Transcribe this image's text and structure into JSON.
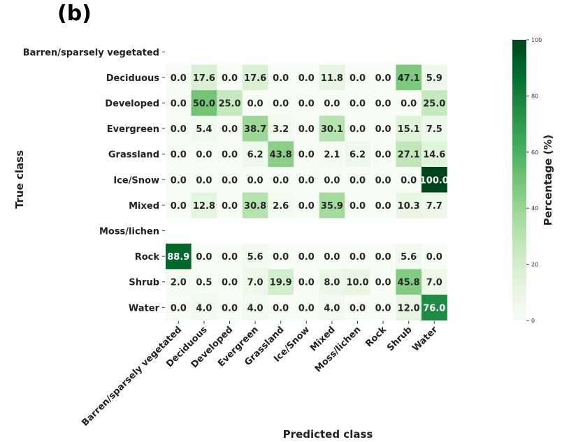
{
  "panel_label": "(b)",
  "chart_data": {
    "type": "heatmap",
    "xlabel": "Predicted class",
    "ylabel": "True class",
    "colorbar_label": "Percentage (%)",
    "colorbar_ticks": [
      "0",
      "20",
      "40",
      "60",
      "80",
      "100"
    ],
    "vmin": 0,
    "vmax": 100,
    "colormap": [
      "#f7fcf5",
      "#e5f5e0",
      "#c7e9c0",
      "#a1d99b",
      "#74c476",
      "#41ab5d",
      "#238b45",
      "#006d2c",
      "#00441b"
    ],
    "row_labels": [
      "Barren/sparsely vegetated",
      "Deciduous",
      "Developed",
      "Evergreen",
      "Grassland",
      "Ice/Snow",
      "Mixed",
      "Moss/lichen",
      "Rock",
      "Shrub",
      "Water"
    ],
    "col_labels": [
      "Barren/sparsely vegetated",
      "Deciduous",
      "Developed",
      "Evergreen",
      "Grassland",
      "Ice/Snow",
      "Mixed",
      "Moss/lichen",
      "Rock",
      "Shrub",
      "Water"
    ],
    "values": [
      [
        null,
        null,
        null,
        null,
        null,
        null,
        null,
        null,
        null,
        null,
        null
      ],
      [
        0.0,
        17.6,
        0.0,
        17.6,
        0.0,
        0.0,
        11.8,
        0.0,
        0.0,
        47.1,
        5.9
      ],
      [
        0.0,
        50.0,
        25.0,
        0.0,
        0.0,
        0.0,
        0.0,
        0.0,
        0.0,
        0.0,
        25.0
      ],
      [
        0.0,
        5.4,
        0.0,
        38.7,
        3.2,
        0.0,
        30.1,
        0.0,
        0.0,
        15.1,
        7.5
      ],
      [
        0.0,
        0.0,
        0.0,
        6.2,
        43.8,
        0.0,
        2.1,
        6.2,
        0.0,
        27.1,
        14.6
      ],
      [
        0.0,
        0.0,
        0.0,
        0.0,
        0.0,
        0.0,
        0.0,
        0.0,
        0.0,
        0.0,
        100.0
      ],
      [
        0.0,
        12.8,
        0.0,
        30.8,
        2.6,
        0.0,
        35.9,
        0.0,
        0.0,
        10.3,
        7.7
      ],
      [
        null,
        null,
        null,
        null,
        null,
        null,
        null,
        null,
        null,
        null,
        null
      ],
      [
        88.9,
        0.0,
        0.0,
        5.6,
        0.0,
        0.0,
        0.0,
        0.0,
        0.0,
        5.6,
        0.0
      ],
      [
        2.0,
        0.5,
        0.0,
        7.0,
        19.9,
        0.0,
        8.0,
        10.0,
        0.0,
        45.8,
        7.0
      ],
      [
        0.0,
        4.0,
        0.0,
        4.0,
        0.0,
        0.0,
        4.0,
        0.0,
        0.0,
        12.0,
        76.0
      ]
    ]
  }
}
